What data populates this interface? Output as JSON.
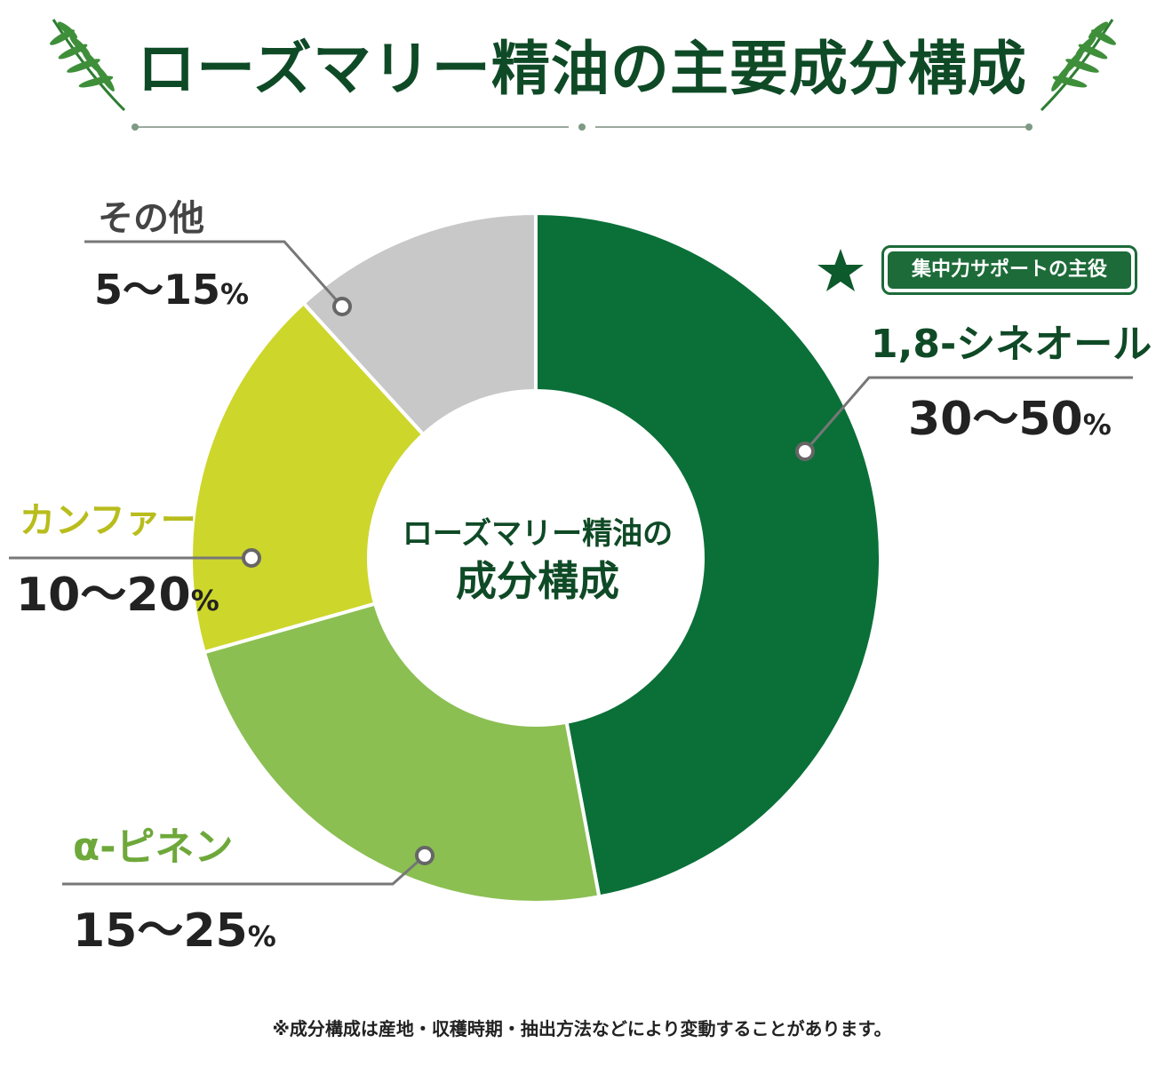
{
  "title": "ローズマリー精油の主要成分構成",
  "badge": "集中力サポートの主役",
  "center": {
    "line1": "ローズマリー精油の",
    "line2": "成分構成"
  },
  "footnote": "※成分構成は産地・収穫時期・抽出方法などにより変動することがあります。",
  "colors": {
    "cineole": "#0a7038",
    "pinene": "#8bbf52",
    "camphor": "#cdd62b",
    "other": "#c8c8c8",
    "title": "#0f4a26"
  },
  "chart_data": {
    "type": "pie",
    "donut": true,
    "title": "ローズマリー精油の成分構成",
    "slices": [
      {
        "name": "1,8-シネオール",
        "range": "30〜50",
        "unit": "%",
        "value": 40,
        "color": "#0a7038"
      },
      {
        "name": "α-ピネン",
        "range": "15〜25",
        "unit": "%",
        "value": 20,
        "color": "#8bbf52"
      },
      {
        "name": "カンファー",
        "range": "10〜20",
        "unit": "%",
        "value": 15,
        "color": "#cdd62b"
      },
      {
        "name": "その他",
        "range": "5〜15",
        "unit": "%",
        "value": 10,
        "color": "#c8c8c8"
      }
    ]
  }
}
